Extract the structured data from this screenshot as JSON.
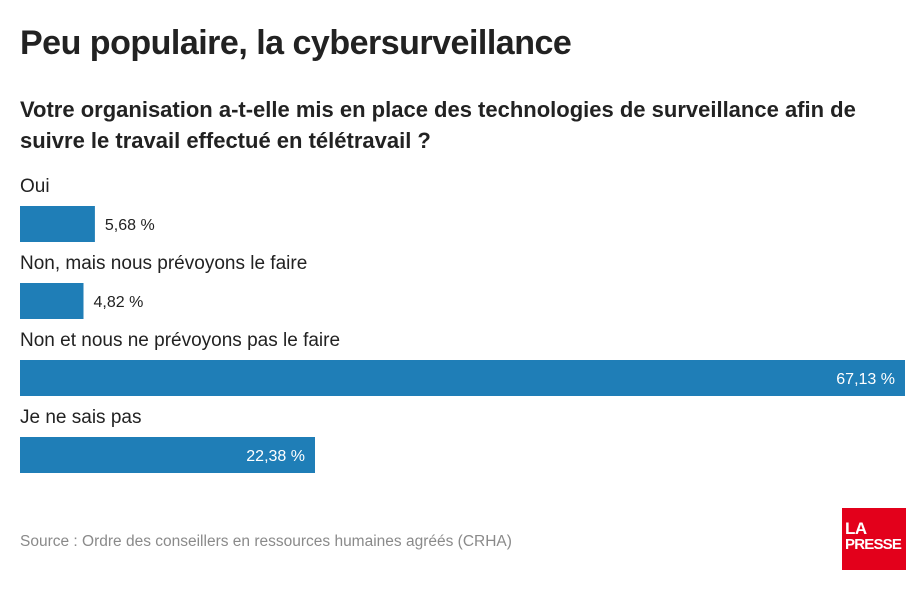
{
  "header": {
    "title": "Peu populaire, la cybersurveillance",
    "subtitle": "Votre organisation a-t-elle mis en place des technologies de surveillance afin de suivre le travail effectué en télétravail ?"
  },
  "chart_data": {
    "type": "bar",
    "orientation": "horizontal",
    "categories": [
      "Oui",
      "Non, mais nous prévoyons le faire",
      "Non et nous ne prévoyons pas le faire",
      "Je ne sais pas"
    ],
    "values": [
      5.68,
      4.82,
      67.13,
      22.38
    ],
    "value_labels": [
      "5,68 %",
      "4,82 %",
      "67,13 %",
      "22,38 %"
    ],
    "bar_color": "#1f7eb7",
    "xlim": [
      0,
      67.13
    ],
    "grid": false,
    "legend": "none"
  },
  "footer": {
    "source": "Source : Ordre des conseillers en ressources humaines agréés (CRHA)",
    "logo_line1": "LA",
    "logo_line2": "PRESSE",
    "logo_color": "#e3001b"
  }
}
